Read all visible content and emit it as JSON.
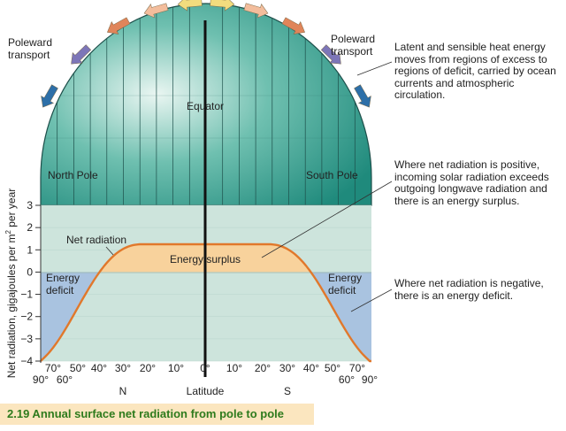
{
  "dome": {
    "poleward_left": "Poleward\ntransport",
    "poleward_right": "Poleward\ntransport",
    "equator": "Equator",
    "north_pole": "North Pole",
    "south_pole": "South Pole",
    "arrow_colors": [
      "#2d6fa8",
      "#7d76b8",
      "#e0855a",
      "#f3bd9c",
      "#f2dc7e",
      "#f2dc7e",
      "#f3bd9c",
      "#e0855a",
      "#7d76b8",
      "#2d6fa8"
    ]
  },
  "notes": {
    "transport": "Latent and sensible heat energy\nmoves from regions of excess to\nregions of deficit, carried by ocean\ncurrents and atmospheric\ncirculation.",
    "positive": "Where net radiation is positive,\nincoming solar radiation exceeds\noutgoing longwave radiation and\nthere is an energy surplus.",
    "negative": "Where net radiation is negative,\nthere is an energy deficit."
  },
  "graph": {
    "y_label_main": "Net radiation, gigajoules per m",
    "y_label_sup": "2",
    "y_label_end": " per year",
    "y_ticks": [
      "3",
      "2",
      "1",
      "0",
      "−1",
      "−2",
      "−3",
      "−4"
    ],
    "x_ticks_upper": [
      "70°",
      "50°",
      "40°",
      "30°",
      "20°",
      "10°",
      "0°",
      "10°",
      "20°",
      "30°",
      "40°",
      "50°",
      "70°"
    ],
    "x_ticks_lower_left": [
      "90°",
      "60°"
    ],
    "x_ticks_lower_right": [
      "60°",
      "90°"
    ],
    "x_north": "N",
    "x_label": "Latitude",
    "x_south": "S",
    "net_radiation_label": "Net radiation",
    "surplus_label": "Energy surplus",
    "deficit_left": "Energy\ndeficit",
    "deficit_right": "Energy\ndeficit",
    "colors": {
      "plot_bg": "#cde4dc",
      "surplus": "#f8d29c",
      "deficit": "#a9c3e0",
      "curve": "#e1782b"
    }
  },
  "caption": "2.19  Annual surface net radiation from pole to pole"
}
